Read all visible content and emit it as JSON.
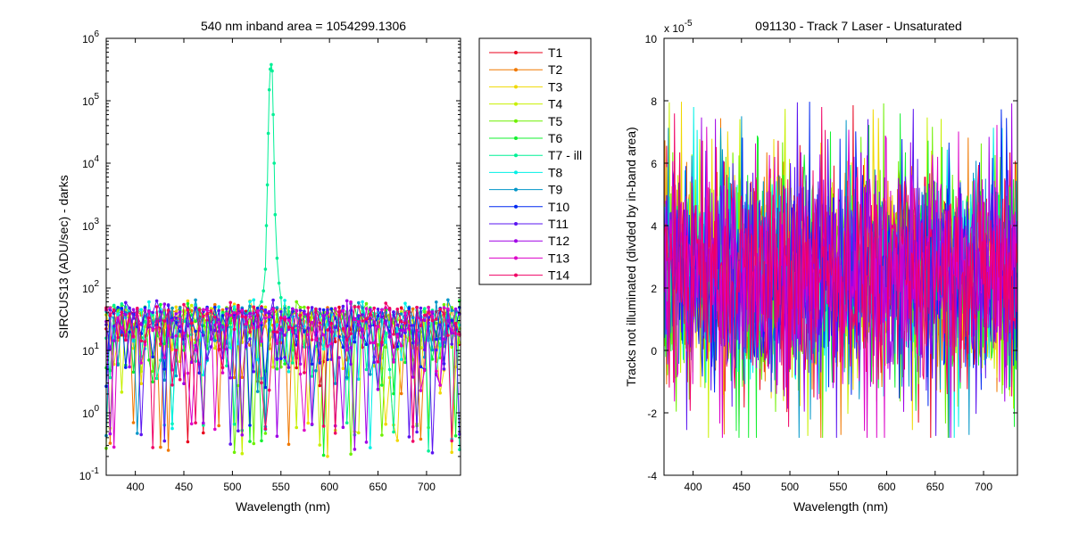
{
  "chart_data": [
    {
      "type": "line",
      "title": "540 nm     inband area = 1054299.1306",
      "xlabel": "Wavelength (nm)",
      "ylabel": "SIRCUS13  (ADU/sec) - darks",
      "xlim": [
        370,
        735
      ],
      "ylim": [
        0.1,
        1000000
      ],
      "yscale": "log",
      "xticks": [
        400,
        450,
        500,
        550,
        600,
        650,
        700
      ],
      "yticks": [
        {
          "value": 0.1,
          "base": "10",
          "exp": "-1"
        },
        {
          "value": 1,
          "base": "10",
          "exp": "0"
        },
        {
          "value": 10,
          "base": "10",
          "exp": "1"
        },
        {
          "value": 100,
          "base": "10",
          "exp": "2"
        },
        {
          "value": 1000,
          "base": "10",
          "exp": "3"
        },
        {
          "value": 10000,
          "base": "10",
          "exp": "4"
        },
        {
          "value": 100000,
          "base": "10",
          "exp": "5"
        },
        {
          "value": 1000000,
          "base": "10",
          "exp": "6"
        }
      ],
      "markers": true,
      "legend_position": "outside-right",
      "noise_floor": {
        "typical_low": 10,
        "typical_high": 50,
        "min": 0.2,
        "max": 70
      },
      "series": [
        {
          "name": "T1",
          "color": "#e8001c"
        },
        {
          "name": "T2",
          "color": "#f07800"
        },
        {
          "name": "T3",
          "color": "#f0d800"
        },
        {
          "name": "T4",
          "color": "#c8f000"
        },
        {
          "name": "T5",
          "color": "#6ef000"
        },
        {
          "name": "T6",
          "color": "#14f030"
        },
        {
          "name": "T7 - ill",
          "color": "#00f096",
          "peak": {
            "x": [
              530,
              532,
              534,
              535,
              536,
              537,
              538,
              539,
              540,
              541,
              542,
              543,
              544,
              546,
              548,
              550
            ],
            "y": [
              60,
              90,
              200,
              1000,
              4500,
              30000,
              150000,
              320000,
              380000,
              300000,
              60000,
              10000,
              1500,
              300,
              120,
              70
            ]
          }
        },
        {
          "name": "T8",
          "color": "#00f0e6"
        },
        {
          "name": "T9",
          "color": "#0096c8"
        },
        {
          "name": "T10",
          "color": "#0028f0"
        },
        {
          "name": "T11",
          "color": "#5a14f0"
        },
        {
          "name": "T12",
          "color": "#a000e6"
        },
        {
          "name": "T13",
          "color": "#dc00c8"
        },
        {
          "name": "T14",
          "color": "#f00064"
        }
      ]
    },
    {
      "type": "line",
      "title": "091130 - Track 7 Laser - Unsaturated",
      "xlabel": "Wavelength (nm)",
      "ylabel": "Tracks not illuminated (divded by in-band area)",
      "xlim": [
        370,
        735
      ],
      "ylim": [
        -4,
        10
      ],
      "yticks": [
        -4,
        -2,
        0,
        2,
        4,
        6,
        8,
        10
      ],
      "xticks": [
        400,
        450,
        500,
        550,
        600,
        650,
        700
      ],
      "y_multiplier": {
        "base": "x 10",
        "exp": "-5"
      },
      "markers": false,
      "noise_band": {
        "center": 2.5,
        "typical_range": [
          0,
          5.5
        ],
        "extreme_range": [
          -2.8,
          8
        ]
      }
    }
  ]
}
